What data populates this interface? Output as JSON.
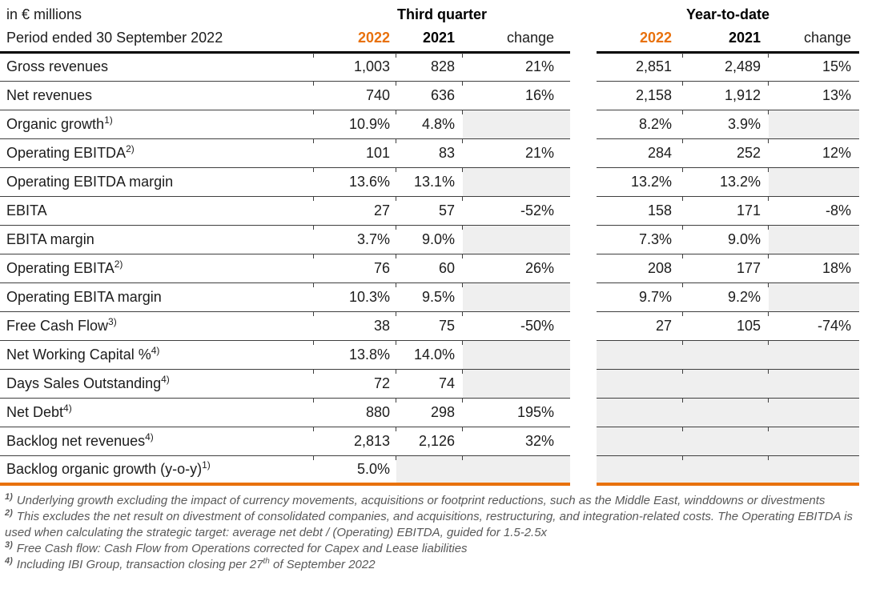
{
  "header": {
    "unit_label": "in € millions",
    "period_label": "Period ended 30 September 2022",
    "groups": [
      {
        "title": "Third quarter",
        "col_2022": "2022",
        "col_2021": "2021",
        "col_change": "change"
      },
      {
        "title": "Year-to-date",
        "col_2022": "2022",
        "col_2021": "2021",
        "col_change": "change"
      }
    ]
  },
  "colors": {
    "accent_orange": "#E8710D",
    "shaded_cell": "#EFEFEF",
    "rule_dark": "#3F3F3F",
    "header_rule": "#000000",
    "footnote_text": "#595959"
  },
  "rows": [
    {
      "label": "Gross revenues",
      "sup": "",
      "q22": "1,003",
      "q21": "828",
      "qch": "21%",
      "y22": "2,851",
      "y21": "2,489",
      "ych": "15%"
    },
    {
      "label": "Net revenues",
      "sup": "",
      "q22": "740",
      "q21": "636",
      "qch": "16%",
      "y22": "2,158",
      "y21": "1,912",
      "ych": "13%"
    },
    {
      "label": "Organic growth",
      "sup": "1)",
      "q22": "10.9%",
      "q21": "4.8%",
      "qch": "",
      "y22": "8.2%",
      "y21": "3.9%",
      "ych": ""
    },
    {
      "label": "Operating EBITDA",
      "sup": "2)",
      "q22": "101",
      "q21": "83",
      "qch": "21%",
      "y22": "284",
      "y21": "252",
      "ych": "12%"
    },
    {
      "label": "Operating EBITDA margin",
      "sup": "",
      "q22": "13.6%",
      "q21": "13.1%",
      "qch": "",
      "y22": "13.2%",
      "y21": "13.2%",
      "ych": ""
    },
    {
      "label": "EBITA",
      "sup": "",
      "q22": "27",
      "q21": "57",
      "qch": "-52%",
      "y22": "158",
      "y21": "171",
      "ych": "-8%"
    },
    {
      "label": "EBITA margin",
      "sup": "",
      "q22": "3.7%",
      "q21": "9.0%",
      "qch": "",
      "y22": "7.3%",
      "y21": "9.0%",
      "ych": ""
    },
    {
      "label": "Operating EBITA",
      "sup": "2)",
      "q22": "76",
      "q21": "60",
      "qch": "26%",
      "y22": "208",
      "y21": "177",
      "ych": "18%"
    },
    {
      "label": "Operating EBITA margin",
      "sup": "",
      "q22": "10.3%",
      "q21": "9.5%",
      "qch": "",
      "y22": "9.7%",
      "y21": "9.2%",
      "ych": ""
    },
    {
      "label": "Free Cash Flow",
      "sup": "3)",
      "q22": "38",
      "q21": "75",
      "qch": "-50%",
      "y22": "27",
      "y21": "105",
      "ych": "-74%"
    },
    {
      "label": "Net Working Capital %",
      "sup": "4)",
      "q22": "13.8%",
      "q21": "14.0%",
      "qch": "",
      "y22": "",
      "y21": "",
      "ych": ""
    },
    {
      "label": "Days Sales Outstanding",
      "sup": "4)",
      "q22": "72",
      "q21": "74",
      "qch": "",
      "y22": "",
      "y21": "",
      "ych": ""
    },
    {
      "label": "Net Debt",
      "sup": "4)",
      "q22": "880",
      "q21": "298",
      "qch": "195%",
      "y22": "",
      "y21": "",
      "ych": ""
    },
    {
      "label": "Backlog net revenues",
      "sup": "4)",
      "q22": "2,813",
      "q21": "2,126",
      "qch": "32%",
      "y22": "",
      "y21": "",
      "ych": ""
    },
    {
      "label": "Backlog organic growth (y-o-y)",
      "sup": "1)",
      "q22": "5.0%",
      "q21": "",
      "qch": "",
      "y22": "",
      "y21": "",
      "ych": ""
    }
  ],
  "footnotes": [
    {
      "marker": "1)",
      "text": "Underlying growth excluding the impact of currency movements, acquisitions or footprint reductions, such as the Middle East, winddowns or divestments"
    },
    {
      "marker": "2)",
      "text": "This excludes the net result on divestment of consolidated companies, and acquisitions, restructuring, and integration-related costs. The Operating EBITDA is used when calculating the strategic target: average net debt / (Operating) EBITDA, guided for 1.5-2.5x"
    },
    {
      "marker": "3)",
      "text": "Free Cash flow: Cash Flow from Operations corrected for Capex and Lease liabilities"
    },
    {
      "marker": "4)",
      "pre": "Including IBI Group, transaction closing per 27",
      "sup": "th",
      "post": " of September 2022"
    }
  ]
}
